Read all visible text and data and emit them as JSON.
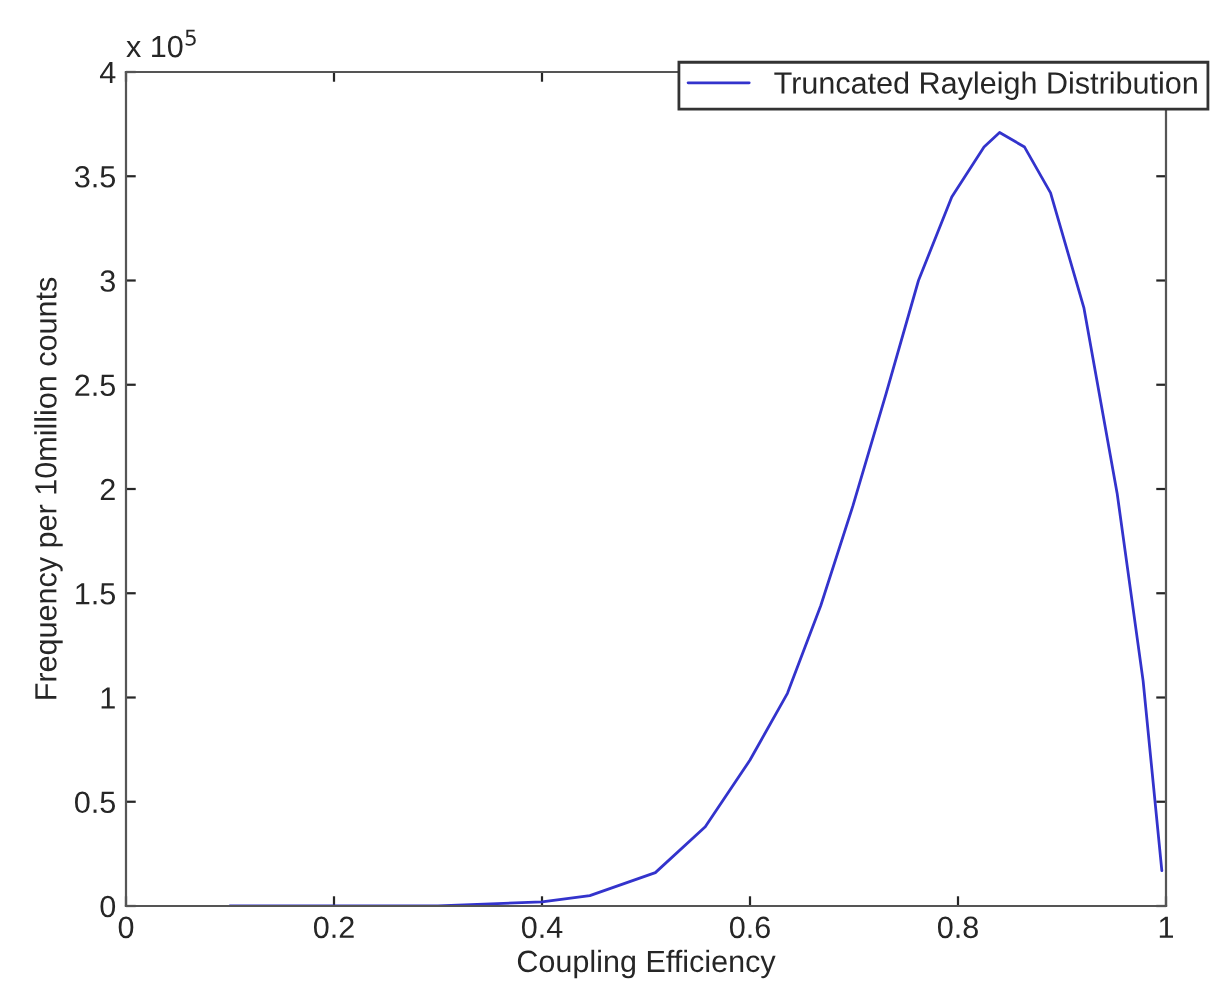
{
  "chart_data": {
    "type": "line",
    "xlabel": "Coupling Efficiency",
    "ylabel": "Frequency per 10million counts",
    "annotations": [
      "x 10$^{5}$"
    ],
    "x": [
      0.1,
      0.2,
      0.3,
      0.4,
      0.446,
      0.509,
      0.557,
      0.6,
      0.636,
      0.668,
      0.699,
      0.731,
      0.762,
      0.794,
      0.825,
      0.84,
      0.864,
      0.889,
      0.921,
      0.953,
      0.978,
      0.996
    ],
    "series": [
      {
        "name": "Truncated Rayleigh Distribution",
        "color": "#3333cc",
        "values": [
          0,
          0,
          0,
          0.02,
          0.05,
          0.16,
          0.38,
          0.7,
          1.02,
          1.44,
          1.92,
          2.46,
          3.0,
          3.4,
          3.64,
          3.71,
          3.64,
          3.42,
          2.87,
          1.98,
          1.08,
          0.17
        ]
      }
    ],
    "xlim": [
      0,
      1
    ],
    "xticks": [
      0,
      0.2,
      0.4,
      0.6,
      0.8,
      1
    ],
    "ylim": [
      0,
      4
    ],
    "yticks": [
      0,
      0.5,
      1,
      1.5,
      2,
      2.5,
      3,
      3.5,
      4
    ],
    "grid": false,
    "legend": "top right",
    "line_style": "solid",
    "marker": "none"
  }
}
